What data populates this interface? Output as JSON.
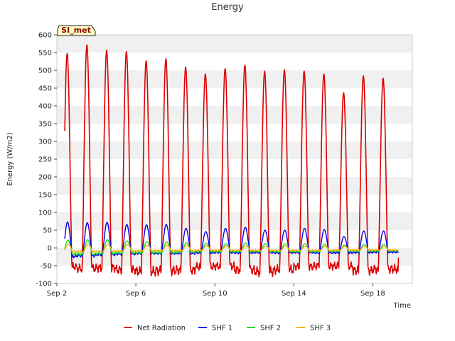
{
  "chart_data": {
    "type": "line",
    "title": "Energy",
    "xlabel": "Time",
    "ylabel": "Energy (W/m2)",
    "site_label": "SI_met",
    "ylim": [
      -100,
      600
    ],
    "yticks": [
      -100,
      -50,
      0,
      50,
      100,
      150,
      200,
      250,
      300,
      350,
      400,
      450,
      500,
      550,
      600
    ],
    "xlim": [
      "2023-09-02",
      "2023-09-20"
    ],
    "xticks": [
      "Sep 2",
      "Sep 6",
      "Sep 10",
      "Sep 14",
      "Sep 18"
    ],
    "grid": "horizontal bands",
    "legend_position": "bottom-center",
    "days": [
      "Sep 2",
      "Sep 3",
      "Sep 4",
      "Sep 5",
      "Sep 6",
      "Sep 7",
      "Sep 8",
      "Sep 9",
      "Sep 10",
      "Sep 11",
      "Sep 12",
      "Sep 13",
      "Sep 14",
      "Sep 15",
      "Sep 16",
      "Sep 17",
      "Sep 18"
    ],
    "series": [
      {
        "name": "Net Radiation",
        "color": "#dd0000",
        "daily_peak": [
          548,
          572,
          557,
          553,
          527,
          533,
          510,
          490,
          505,
          515,
          498,
          502,
          498,
          490,
          437,
          485,
          478
        ],
        "night_min": [
          -62,
          -68,
          -66,
          -73,
          -78,
          -75,
          -74,
          -62,
          -60,
          -72,
          -78,
          -72,
          -62,
          -60,
          -60,
          -75,
          -70
        ]
      },
      {
        "name": "SHF 1",
        "color": "#0000ee",
        "daily_peak": [
          73,
          71,
          72,
          66,
          65,
          66,
          55,
          46,
          55,
          58,
          50,
          50,
          55,
          52,
          32,
          48,
          48
        ],
        "night_min": [
          -28,
          -25,
          -22,
          -20,
          -18,
          -18,
          -18,
          -16,
          -15,
          -16,
          -15,
          -16,
          -15,
          -16,
          -16,
          -15,
          -14
        ]
      },
      {
        "name": "SHF 2",
        "color": "#22dd22",
        "daily_peak": [
          22,
          23,
          23,
          20,
          18,
          17,
          15,
          13,
          12,
          14,
          12,
          12,
          12,
          11,
          8,
          10,
          10
        ],
        "night_min": [
          -20,
          -20,
          -18,
          -16,
          -15,
          -15,
          -14,
          -12,
          -12,
          -12,
          -12,
          -12,
          -12,
          -12,
          -11,
          -11,
          -10
        ]
      },
      {
        "name": "SHF 3",
        "color": "#ffaa00",
        "daily_peak": [
          10,
          10,
          10,
          9,
          8,
          8,
          7,
          6,
          6,
          6,
          5,
          5,
          5,
          5,
          4,
          4,
          4
        ],
        "night_min": [
          -12,
          -12,
          -11,
          -10,
          -9,
          -9,
          -9,
          -8,
          -8,
          -8,
          -8,
          -8,
          -8,
          -8,
          -7,
          -7,
          -7
        ]
      }
    ]
  }
}
